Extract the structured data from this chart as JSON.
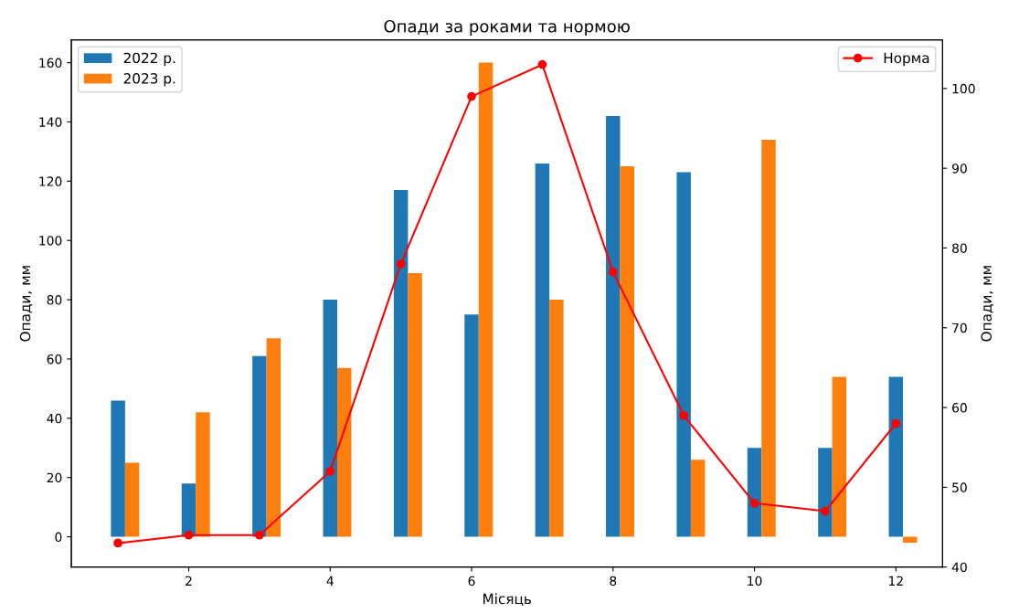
{
  "chart_data": {
    "type": "bar",
    "title": "Опади за роками та нормою",
    "xlabel": "Місяць",
    "ylabel": "Опади, мм",
    "y2label": "Опади, мм",
    "x": [
      1,
      2,
      3,
      4,
      5,
      6,
      7,
      8,
      9,
      10,
      11,
      12
    ],
    "series": [
      {
        "name": "2022 р.",
        "color": "#1f77b4",
        "values": [
          46,
          18,
          61,
          80,
          117,
          75,
          126,
          142,
          123,
          30,
          30,
          54
        ]
      },
      {
        "name": "2023 р.",
        "color": "#ff7f0e",
        "values": [
          25,
          42,
          67,
          57,
          89,
          160,
          80,
          125,
          26,
          134,
          54,
          -2
        ]
      },
      {
        "name": "Норма",
        "type": "line",
        "axis": "y2",
        "color": "#ff0000",
        "marker": "circle",
        "values": [
          43,
          44,
          44,
          52,
          78,
          99,
          103,
          77,
          59,
          48,
          47,
          58
        ]
      }
    ],
    "xlim": [
      0.34,
      12.66
    ],
    "xticks": [
      2,
      4,
      6,
      8,
      10,
      12
    ],
    "ylim": [
      -10.2,
      167.7
    ],
    "yticks": [
      0,
      20,
      40,
      60,
      80,
      100,
      120,
      140,
      160
    ],
    "y2lim": [
      40,
      106.1
    ],
    "y2ticks": [
      40,
      50,
      60,
      70,
      80,
      90,
      100
    ],
    "legend": "top left",
    "grid": false
  }
}
